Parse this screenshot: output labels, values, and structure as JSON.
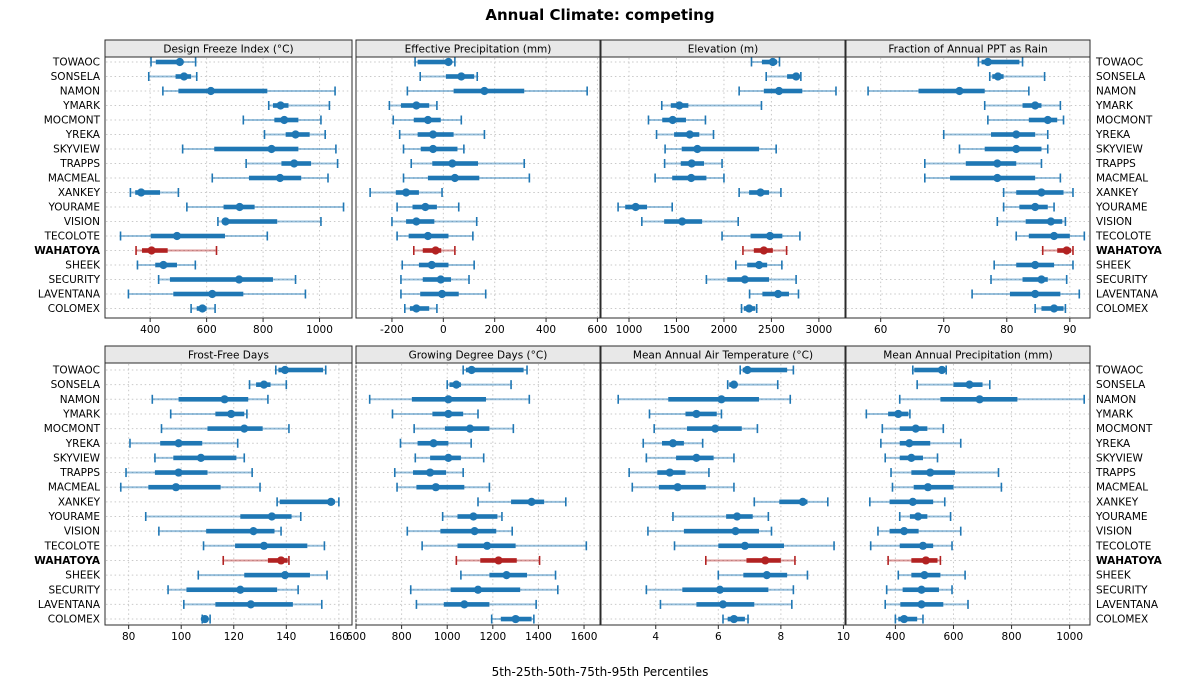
{
  "title": "Annual Climate: competing",
  "caption": "5th-25th-50th-75th-95th Percentiles",
  "colors": {
    "series": "#1f77b4",
    "highlight": "#b22222",
    "grid": "#c9c9c9",
    "header_bg": "#e8e8e8",
    "border": "#2b2b2b",
    "text": "#000000"
  },
  "chart_data": {
    "type": "interval-dot-plot",
    "percentiles": [
      5,
      25,
      50,
      75,
      95
    ],
    "highlight_station": "WAHATOYA",
    "stations": [
      "TOWAOC",
      "SONSELA",
      "NAMON",
      "YMARK",
      "MOCMONT",
      "YREKA",
      "SKYVIEW",
      "TRAPPS",
      "MACMEAL",
      "XANKEY",
      "YOURAME",
      "VISION",
      "TECOLOTE",
      "WAHATOYA",
      "SHEEK",
      "SECURITY",
      "LAVENTANA",
      "COLOMEX"
    ],
    "panels": [
      {
        "title": "Design Freeze Index (°C)",
        "ticks": [
          400,
          600,
          800,
          1000
        ],
        "xlim": [
          240,
          1115
        ],
        "values": [
          [
            403,
            420,
            505,
            512,
            561
          ],
          [
            395,
            490,
            520,
            545,
            565
          ],
          [
            445,
            500,
            615,
            815,
            1055
          ],
          [
            820,
            835,
            862,
            890,
            1035
          ],
          [
            730,
            840,
            875,
            925,
            1005
          ],
          [
            805,
            880,
            915,
            965,
            1020
          ],
          [
            515,
            627,
            830,
            925,
            1058
          ],
          [
            740,
            865,
            910,
            970,
            1064
          ],
          [
            620,
            750,
            860,
            935,
            1030
          ],
          [
            330,
            347,
            368,
            435,
            500
          ],
          [
            530,
            660,
            717,
            770,
            1085
          ],
          [
            640,
            655,
            667,
            850,
            1005
          ],
          [
            295,
            402,
            495,
            665,
            815
          ],
          [
            350,
            371,
            405,
            462,
            635
          ],
          [
            355,
            418,
            447,
            495,
            560
          ],
          [
            430,
            470,
            715,
            835,
            915
          ],
          [
            323,
            482,
            620,
            730,
            950
          ],
          [
            545,
            565,
            585,
            600,
            630
          ]
        ]
      },
      {
        "title": "Effective Precipitation (mm)",
        "ticks": [
          -200,
          0,
          200,
          400,
          600
        ],
        "xlim": [
          -340,
          610
        ],
        "values": [
          [
            -110,
            -100,
            20,
            30,
            45
          ],
          [
            -90,
            10,
            70,
            120,
            132
          ],
          [
            -140,
            40,
            160,
            315,
            560
          ],
          [
            -210,
            -165,
            -105,
            -55,
            -25
          ],
          [
            -195,
            -115,
            -60,
            -10,
            70
          ],
          [
            -170,
            -100,
            -40,
            40,
            160
          ],
          [
            -155,
            -88,
            -40,
            55,
            80
          ],
          [
            -125,
            -43,
            35,
            135,
            315
          ],
          [
            -155,
            -60,
            45,
            140,
            335
          ],
          [
            -285,
            -185,
            -145,
            -95,
            -5
          ],
          [
            -180,
            -120,
            -70,
            -25,
            60
          ],
          [
            -200,
            -145,
            -105,
            -35,
            130
          ],
          [
            -180,
            -135,
            -60,
            20,
            115
          ],
          [
            -115,
            -80,
            -30,
            -8,
            45
          ],
          [
            -160,
            -95,
            -45,
            20,
            120
          ],
          [
            -165,
            -80,
            -10,
            30,
            100
          ],
          [
            -165,
            -90,
            -5,
            60,
            165
          ],
          [
            -150,
            -130,
            -105,
            -55,
            -25
          ]
        ]
      },
      {
        "title": "Elevation (m)",
        "ticks": [
          1000,
          1500,
          2000,
          2500,
          3000
        ],
        "xlim": [
          705,
          3275
        ],
        "values": [
          [
            2290,
            2400,
            2515,
            2560,
            2585
          ],
          [
            2445,
            2665,
            2760,
            2795,
            2810
          ],
          [
            2160,
            2420,
            2580,
            2825,
            3180
          ],
          [
            1345,
            1440,
            1530,
            1625,
            2395
          ],
          [
            1205,
            1350,
            1460,
            1600,
            1805
          ],
          [
            1290,
            1475,
            1640,
            1740,
            1890
          ],
          [
            1380,
            1555,
            1720,
            2370,
            2550
          ],
          [
            1375,
            1545,
            1660,
            1790,
            1980
          ],
          [
            1275,
            1455,
            1655,
            1815,
            2000
          ],
          [
            2160,
            2265,
            2385,
            2475,
            2600
          ],
          [
            885,
            960,
            1070,
            1190,
            1455
          ],
          [
            1135,
            1370,
            1560,
            1770,
            2150
          ],
          [
            1980,
            2280,
            2485,
            2615,
            2800
          ],
          [
            2200,
            2315,
            2420,
            2515,
            2660
          ],
          [
            2125,
            2245,
            2370,
            2455,
            2610
          ],
          [
            1815,
            2035,
            2220,
            2475,
            2760
          ],
          [
            2270,
            2405,
            2570,
            2685,
            2785
          ],
          [
            2185,
            2210,
            2265,
            2330,
            2345
          ]
        ]
      },
      {
        "title": "Fraction of Annual PPT as Rain",
        "ticks": [
          60,
          70,
          80,
          90
        ],
        "xlim": [
          54.5,
          93.2
        ],
        "values": [
          [
            75.5,
            76,
            77,
            82,
            82.5
          ],
          [
            77.3,
            77.7,
            78.6,
            79.5,
            86
          ],
          [
            58,
            66,
            72.5,
            76.5,
            83.5
          ],
          [
            76.5,
            82.5,
            84.5,
            85.5,
            88.5
          ],
          [
            77,
            83.5,
            86.5,
            88,
            89
          ],
          [
            70,
            77.5,
            81.5,
            84.5,
            86.5
          ],
          [
            72.5,
            76.5,
            81.5,
            85.5,
            86.5
          ],
          [
            67,
            73.5,
            78.5,
            81.5,
            85.5
          ],
          [
            67,
            71,
            78.5,
            84.5,
            88.5
          ],
          [
            79.5,
            81.5,
            85.5,
            89,
            90.5
          ],
          [
            79.5,
            82,
            84.5,
            86.5,
            87.5
          ],
          [
            78.5,
            83,
            87,
            88.8,
            89.3
          ],
          [
            81.5,
            83.5,
            87.5,
            90,
            92.3
          ],
          [
            85.7,
            88,
            89.5,
            90.2,
            90.5
          ],
          [
            78,
            81.5,
            84.5,
            87.5,
            90.5
          ],
          [
            77.5,
            82.5,
            85.5,
            86.5,
            89.5
          ],
          [
            74.5,
            80.5,
            84.5,
            88.5,
            91.5
          ],
          [
            84.5,
            85.5,
            87.5,
            89,
            89.3
          ]
        ]
      },
      {
        "title": "Frost-Free Days",
        "ticks": [
          80,
          100,
          120,
          140,
          160
        ],
        "xlim": [
          71,
          165
        ],
        "values": [
          [
            136,
            137,
            139.5,
            154,
            155
          ],
          [
            126,
            128.5,
            131.5,
            134,
            140
          ],
          [
            89,
            99,
            116.5,
            125.5,
            133
          ],
          [
            96,
            113,
            119,
            124,
            125
          ],
          [
            92.5,
            110,
            124,
            131,
            141
          ],
          [
            80.5,
            92,
            99,
            108,
            121.5
          ],
          [
            90,
            97,
            107.5,
            121,
            124
          ],
          [
            79,
            90,
            99,
            110,
            127
          ],
          [
            77,
            87.5,
            98,
            115,
            130
          ],
          [
            136.5,
            137.5,
            157,
            158.5,
            160
          ],
          [
            86.5,
            122.5,
            134.5,
            142,
            145.5
          ],
          [
            91.5,
            109.5,
            127.5,
            135.5,
            138
          ],
          [
            108.5,
            120.5,
            131.5,
            148,
            154.5
          ],
          [
            116,
            133,
            138,
            140.5,
            141
          ],
          [
            106.5,
            124,
            139.5,
            149,
            155.5
          ],
          [
            95,
            102,
            122.5,
            136.5,
            144.5
          ],
          [
            101,
            113,
            126.5,
            142.5,
            153.5
          ],
          [
            108,
            108.5,
            109,
            110,
            111
          ]
        ]
      },
      {
        "title": "Growing Degree Days (°C)",
        "ticks": [
          600,
          800,
          1000,
          1200,
          1400,
          1600
        ],
        "xlim": [
          600,
          1670
        ],
        "values": [
          [
            1070,
            1082,
            1107,
            1335,
            1350
          ],
          [
            1000,
            1010,
            1040,
            1060,
            1280
          ],
          [
            660,
            845,
            1005,
            1170,
            1360
          ],
          [
            760,
            935,
            1005,
            1070,
            1135
          ],
          [
            855,
            990,
            1100,
            1185,
            1290
          ],
          [
            795,
            870,
            940,
            1005,
            1105
          ],
          [
            860,
            925,
            1005,
            1060,
            1160
          ],
          [
            770,
            850,
            925,
            995,
            1070
          ],
          [
            780,
            865,
            950,
            1075,
            1185
          ],
          [
            1135,
            1280,
            1370,
            1425,
            1520
          ],
          [
            980,
            1045,
            1115,
            1220,
            1240
          ],
          [
            825,
            970,
            1120,
            1215,
            1285
          ],
          [
            890,
            1045,
            1175,
            1300,
            1610
          ],
          [
            1040,
            1145,
            1225,
            1305,
            1405
          ],
          [
            1060,
            1185,
            1260,
            1350,
            1475
          ],
          [
            840,
            1015,
            1135,
            1320,
            1485
          ],
          [
            865,
            985,
            1075,
            1185,
            1390
          ],
          [
            1195,
            1235,
            1300,
            1370,
            1380
          ]
        ]
      },
      {
        "title": "Mean Annual Air Temperature (°C)",
        "ticks": [
          4,
          6,
          8,
          10
        ],
        "xlim": [
          2.25,
          10.05
        ],
        "values": [
          [
            6.7,
            6.78,
            6.93,
            8.2,
            8.4
          ],
          [
            6.3,
            6.35,
            6.5,
            6.6,
            7.9
          ],
          [
            2.8,
            4.4,
            6.1,
            7.3,
            8.3
          ],
          [
            3.8,
            4.95,
            5.3,
            5.95,
            6.1
          ],
          [
            3.95,
            5.0,
            5.9,
            6.75,
            7.25
          ],
          [
            3.6,
            4.2,
            4.55,
            4.9,
            5.5
          ],
          [
            3.7,
            4.65,
            5.3,
            5.85,
            6.5
          ],
          [
            3.15,
            4.05,
            4.45,
            4.95,
            5.7
          ],
          [
            3.25,
            4.1,
            4.7,
            5.6,
            6.5
          ],
          [
            7.15,
            7.95,
            8.7,
            8.85,
            9.5
          ],
          [
            4.55,
            6.25,
            6.6,
            7.1,
            7.6
          ],
          [
            3.75,
            4.9,
            6.55,
            7.3,
            7.7
          ],
          [
            4.6,
            6.0,
            6.85,
            8.1,
            9.7
          ],
          [
            5.6,
            6.9,
            7.5,
            8.0,
            8.45
          ],
          [
            6.0,
            6.8,
            7.55,
            8.2,
            8.85
          ],
          [
            3.7,
            4.85,
            6.05,
            7.6,
            8.4
          ],
          [
            4.15,
            5.3,
            6.15,
            7.15,
            8.35
          ],
          [
            6.15,
            6.3,
            6.5,
            6.85,
            6.95
          ]
        ]
      },
      {
        "title": "Mean Annual Precipitation (mm)",
        "ticks": [
          400,
          600,
          800,
          1000
        ],
        "xlim": [
          230,
          1070
        ],
        "values": [
          [
            460,
            465,
            560,
            570,
            575
          ],
          [
            475,
            600,
            655,
            700,
            725
          ],
          [
            415,
            555,
            690,
            820,
            1050
          ],
          [
            300,
            375,
            410,
            445,
            450
          ],
          [
            355,
            415,
            470,
            510,
            565
          ],
          [
            350,
            415,
            448,
            520,
            625
          ],
          [
            365,
            415,
            455,
            495,
            545
          ],
          [
            385,
            455,
            520,
            605,
            755
          ],
          [
            390,
            463,
            512,
            600,
            765
          ],
          [
            312,
            380,
            460,
            530,
            570
          ],
          [
            415,
            450,
            478,
            510,
            590
          ],
          [
            340,
            380,
            430,
            480,
            625
          ],
          [
            315,
            415,
            495,
            530,
            595
          ],
          [
            375,
            455,
            505,
            545,
            555
          ],
          [
            410,
            455,
            500,
            555,
            640
          ],
          [
            370,
            425,
            490,
            550,
            595
          ],
          [
            365,
            417,
            490,
            565,
            650
          ],
          [
            400,
            410,
            430,
            475,
            495
          ]
        ]
      }
    ]
  }
}
